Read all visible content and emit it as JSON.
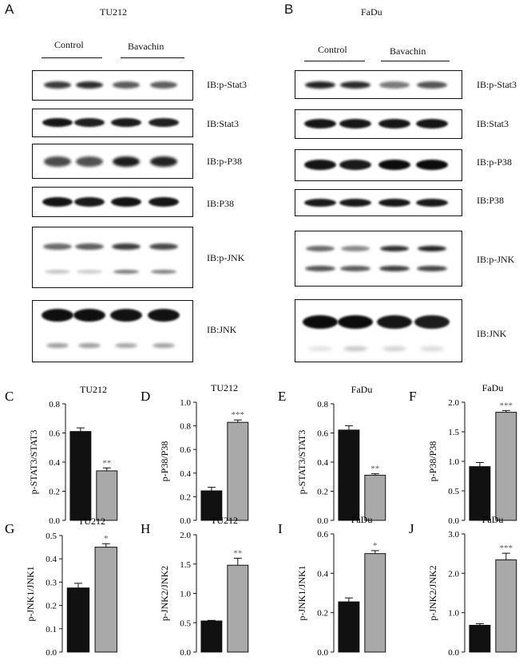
{
  "blots": [
    {
      "letter": "A",
      "title": "TU212",
      "groups": [
        "Control",
        "Bavachin"
      ],
      "panels": [
        {
          "label": "IB:p-Stat3"
        },
        {
          "label": "IB:Stat3"
        },
        {
          "label": "IB:p-P38"
        },
        {
          "label": "IB:P38"
        },
        {
          "label": "IB:p-JNK"
        },
        {
          "label": "IB:JNK"
        }
      ]
    },
    {
      "letter": "B",
      "title": "FaDu",
      "groups": [
        "Control",
        "Bavachin"
      ],
      "panels": [
        {
          "label": "IB:p-Stat3"
        },
        {
          "label": "IB:Stat3"
        },
        {
          "label": "IB:p-P38"
        },
        {
          "label": "IB:P38"
        },
        {
          "label": "IB:p-JNK"
        },
        {
          "label": "IB:JNK"
        }
      ]
    }
  ],
  "colors": {
    "control": "#111111",
    "bavachin": "#a9a9a9"
  },
  "chart_data": [
    {
      "letter": "C",
      "type": "bar",
      "title": "TU212",
      "ylabel": "p-STAT3/STAT3",
      "ylim": [
        0,
        0.8
      ],
      "ticks": [
        "0.0",
        "0.2",
        "0.4",
        "0.6",
        "0.8"
      ],
      "values": [
        0.61,
        0.34
      ],
      "errors": [
        0.025,
        0.02
      ],
      "significance": "**"
    },
    {
      "letter": "D",
      "type": "bar",
      "title": "TU212",
      "ylabel": "p-P38/P38",
      "ylim": [
        0,
        1.0
      ],
      "ticks": [
        "0.0",
        "0.2",
        "0.4",
        "0.6",
        "0.8",
        "1.0"
      ],
      "values": [
        0.25,
        0.83
      ],
      "errors": [
        0.03,
        0.02
      ],
      "significance": "***"
    },
    {
      "letter": "E",
      "type": "bar",
      "title": "FaDu",
      "ylabel": "p-STAT3/STAT3",
      "ylim": [
        0,
        0.8
      ],
      "ticks": [
        "0.0",
        "0.2",
        "0.4",
        "0.6",
        "0.8"
      ],
      "values": [
        0.62,
        0.31
      ],
      "errors": [
        0.03,
        0.01
      ],
      "significance": "**"
    },
    {
      "letter": "F",
      "type": "bar",
      "title": "FaDu",
      "ylabel": "p-P38/P38",
      "ylim": [
        0,
        2.0
      ],
      "ticks": [
        "0.0",
        "0.5",
        "1.0",
        "1.5",
        "2.0"
      ],
      "values": [
        0.91,
        1.83
      ],
      "errors": [
        0.07,
        0.03
      ],
      "significance": "***"
    },
    {
      "letter": "G",
      "type": "bar",
      "title": "TU212",
      "ylabel": "p-JNK1/JNK1",
      "ylim": [
        0,
        0.5
      ],
      "ticks": [
        "0.0",
        "0.1",
        "0.2",
        "0.3",
        "0.4",
        "0.5"
      ],
      "values": [
        0.275,
        0.45
      ],
      "errors": [
        0.02,
        0.015
      ],
      "significance": "*"
    },
    {
      "letter": "H",
      "type": "bar",
      "title": "TU212",
      "ylabel": "p-JNK2/JNK2",
      "ylim": [
        0,
        2.0
      ],
      "ticks": [
        "0.0",
        "0.5",
        "1.0",
        "1.5",
        "2.0"
      ],
      "values": [
        0.53,
        1.48
      ],
      "errors": [
        0.01,
        0.12
      ],
      "significance": "**"
    },
    {
      "letter": "I",
      "type": "bar",
      "title": "FaDu",
      "ylabel": "p-JNK1/JNK1",
      "ylim": [
        0,
        0.6
      ],
      "ticks": [
        "0.0",
        "0.2",
        "0.4",
        "0.6"
      ],
      "values": [
        0.255,
        0.5
      ],
      "errors": [
        0.02,
        0.015
      ],
      "significance": "*"
    },
    {
      "letter": "J",
      "type": "bar",
      "title": "FaDu",
      "ylabel": "p-JNK2/JNK2",
      "ylim": [
        0,
        3.0
      ],
      "ticks": [
        "0.0",
        "1.0",
        "2.0",
        "3.0"
      ],
      "values": [
        0.68,
        2.34
      ],
      "errors": [
        0.04,
        0.17
      ],
      "significance": "***"
    }
  ]
}
